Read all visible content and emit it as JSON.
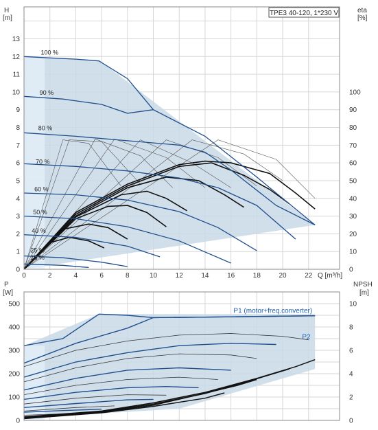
{
  "chart_data": [
    {
      "type": "line",
      "panel": "head",
      "model_label": "TPE3 40-120, 1*230 V",
      "ylabel_left": "H",
      "yunit_left": "[m]",
      "ylabel_right": "eta",
      "yunit_right": "[%]",
      "xlabel": "Q [m³/h]",
      "xlim": [
        0,
        24.4
      ],
      "ylim": [
        0,
        14.8
      ],
      "xticks": [
        0,
        2,
        4,
        6,
        8,
        10,
        12,
        14,
        16,
        18,
        20,
        22
      ],
      "yticks_left": [
        0,
        1,
        2,
        3,
        4,
        5,
        6,
        7,
        8,
        9,
        10,
        11,
        12,
        13
      ],
      "yticks_right": [
        0,
        10,
        20,
        30,
        40,
        50,
        60,
        70,
        80,
        90,
        100
      ],
      "right_scale_factor": 10,
      "grid": true,
      "envelope": [
        [
          0,
          12.0
        ],
        [
          5.8,
          11.8
        ],
        [
          22.5,
          2.5
        ],
        [
          0,
          0
        ]
      ],
      "curves": [
        {
          "label": "100 %",
          "label_x": 1.3,
          "label_y": 12.1,
          "points": [
            [
              0,
              12.0
            ],
            [
              2,
              11.92
            ],
            [
              4,
              11.85
            ],
            [
              5.8,
              11.75
            ],
            [
              8,
              10.75
            ],
            [
              10,
              9.0
            ],
            [
              14,
              7.5
            ],
            [
              18,
              5.2
            ],
            [
              22.5,
              2.5
            ]
          ]
        },
        {
          "label": "90 %",
          "label_x": 1.2,
          "label_y": 9.85,
          "points": [
            [
              0,
              9.75
            ],
            [
              3,
              9.6
            ],
            [
              6,
              9.3
            ],
            [
              8,
              8.8
            ],
            [
              10,
              9.0
            ]
          ]
        },
        {
          "label": "80 %",
          "label_x": 1.1,
          "label_y": 7.85,
          "points": [
            [
              0,
              7.7
            ],
            [
              4,
              7.5
            ],
            [
              8,
              7.25
            ],
            [
              12,
              7.0
            ],
            [
              14,
              6.6
            ],
            [
              16,
              5.6
            ],
            [
              19.5,
              3.6
            ],
            [
              22.5,
              2.5
            ]
          ]
        },
        {
          "label": "70 %",
          "label_x": 0.9,
          "label_y": 5.95,
          "points": [
            [
              0,
              5.95
            ],
            [
              4,
              5.8
            ],
            [
              8,
              5.55
            ],
            [
              12,
              5.15
            ],
            [
              15,
              4.6
            ],
            [
              18,
              3.6
            ],
            [
              21,
              1.7
            ]
          ]
        },
        {
          "label": "60 %",
          "label_x": 0.8,
          "label_y": 4.4,
          "points": [
            [
              0,
              4.3
            ],
            [
              4,
              4.2
            ],
            [
              8,
              3.9
            ],
            [
              12,
              3.25
            ],
            [
              15,
              2.35
            ],
            [
              18,
              1.05
            ]
          ]
        },
        {
          "label": "50 %",
          "label_x": 0.7,
          "label_y": 3.1,
          "points": [
            [
              0,
              3.0
            ],
            [
              4,
              2.85
            ],
            [
              8,
              2.4
            ],
            [
              12,
              1.6
            ],
            [
              16,
              0.35
            ]
          ]
        },
        {
          "label": "40 %",
          "label_x": 0.6,
          "label_y": 2.05,
          "points": [
            [
              0,
              1.95
            ],
            [
              4,
              1.8
            ],
            [
              8,
              1.3
            ],
            [
              10.5,
              0.7
            ]
          ]
        },
        {
          "label": "25 %",
          "label_x": 0.5,
          "label_y": 0.95,
          "points": [
            [
              0,
              0.75
            ],
            [
              3,
              0.65
            ],
            [
              6,
              0.4
            ],
            [
              8,
              0.15
            ]
          ]
        },
        {
          "label": "15 %",
          "label_x": 0.5,
          "label_y": 0.55,
          "points": [
            [
              0,
              0.3
            ],
            [
              3,
              0.22
            ],
            [
              5,
              0.1
            ]
          ]
        }
      ],
      "eta_bold": [
        [
          [
            0,
            0
          ],
          [
            4,
            3.2
          ],
          [
            8,
            4.8
          ],
          [
            12,
            5.9
          ],
          [
            14,
            6.1
          ],
          [
            16,
            6.0
          ],
          [
            19,
            5.4
          ],
          [
            21,
            4.3
          ],
          [
            22.5,
            3.4
          ]
        ],
        [
          [
            0,
            0
          ],
          [
            4,
            3.1
          ],
          [
            8,
            4.7
          ],
          [
            12,
            5.8
          ],
          [
            14.5,
            6.0
          ],
          [
            17,
            5.3
          ],
          [
            19,
            4.5
          ],
          [
            20.5,
            3.7
          ]
        ],
        [
          [
            0,
            0
          ],
          [
            4,
            3.0
          ],
          [
            8,
            4.6
          ],
          [
            11,
            5.2
          ],
          [
            13.5,
            5.0
          ],
          [
            15.5,
            4.2
          ],
          [
            17,
            3.5
          ]
        ],
        [
          [
            0,
            0
          ],
          [
            4,
            2.95
          ],
          [
            7.5,
            4.2
          ],
          [
            9.5,
            4.4
          ],
          [
            11,
            4.0
          ],
          [
            12.6,
            3.3
          ]
        ],
        [
          [
            0,
            0
          ],
          [
            4,
            2.85
          ],
          [
            6.5,
            3.55
          ],
          [
            8,
            3.6
          ],
          [
            9.5,
            3.2
          ],
          [
            11,
            2.4
          ]
        ],
        [
          [
            0,
            0
          ],
          [
            3,
            2.25
          ],
          [
            5,
            2.55
          ],
          [
            6.5,
            2.35
          ],
          [
            8,
            1.7
          ]
        ],
        [
          [
            0,
            0
          ],
          [
            2,
            1.5
          ],
          [
            3.5,
            1.8
          ],
          [
            5,
            1.6
          ],
          [
            6.2,
            1.2
          ]
        ]
      ],
      "eta_thin": [
        [
          [
            0,
            0
          ],
          [
            3,
            7.3
          ],
          [
            5,
            7.1
          ],
          [
            7.5,
            4.7
          ]
        ],
        [
          [
            0,
            0
          ],
          [
            3.5,
            7.3
          ],
          [
            6,
            7.2
          ],
          [
            9,
            4.8
          ]
        ],
        [
          [
            0,
            0
          ],
          [
            5.5,
            7.35
          ],
          [
            9,
            6.4
          ],
          [
            11.5,
            4.6
          ]
        ],
        [
          [
            0,
            0
          ],
          [
            7,
            7.35
          ],
          [
            11,
            6.3
          ],
          [
            14,
            4.6
          ]
        ],
        [
          [
            0,
            0
          ],
          [
            9,
            7.3
          ],
          [
            13,
            6.0
          ],
          [
            16,
            4.6
          ]
        ],
        [
          [
            0,
            0
          ],
          [
            11,
            7.3
          ],
          [
            15,
            6.3
          ],
          [
            18,
            4.7
          ]
        ],
        [
          [
            0,
            0
          ],
          [
            13,
            7.3
          ],
          [
            17,
            6.5
          ],
          [
            20,
            5.0
          ]
        ],
        [
          [
            0,
            0
          ],
          [
            15,
            7.3
          ],
          [
            19.5,
            6.2
          ],
          [
            22.5,
            4.0
          ]
        ]
      ]
    },
    {
      "type": "line",
      "panel": "power",
      "ylabel_left": "P",
      "yunit_left": "[W]",
      "ylabel_right": "NPSH",
      "yunit_right": "[m]",
      "xlim": [
        0,
        24.4
      ],
      "ylim": [
        0,
        550
      ],
      "yticks_left": [
        0,
        100,
        200,
        300,
        400,
        500
      ],
      "yticks_right": [
        0,
        2,
        4,
        6,
        8,
        10
      ],
      "right_scale_factor": 50,
      "grid": true,
      "envelope": [
        [
          0,
          320
        ],
        [
          5.8,
          455
        ],
        [
          22.5,
          455
        ],
        [
          22.5,
          220
        ],
        [
          12,
          50
        ],
        [
          0,
          10
        ]
      ],
      "series_labels": [
        {
          "name": "P1 (motor+freq.converter)",
          "x": 16.2,
          "y": 460
        },
        {
          "name": "P2",
          "x": 21.5,
          "y": 348
        }
      ],
      "p1_curves": [
        [
          [
            0,
            320
          ],
          [
            3,
            350
          ],
          [
            5.8,
            455
          ],
          [
            8,
            450
          ],
          [
            10,
            440
          ],
          [
            14,
            442
          ],
          [
            18,
            445
          ],
          [
            22.5,
            448
          ]
        ],
        [
          [
            0,
            245
          ],
          [
            4,
            330
          ],
          [
            8,
            395
          ],
          [
            10,
            440
          ],
          [
            14,
            442
          ],
          [
            22.5,
            448
          ]
        ],
        [
          [
            0,
            185
          ],
          [
            4,
            250
          ],
          [
            8,
            290
          ],
          [
            12,
            320
          ],
          [
            16,
            330
          ],
          [
            19.5,
            325
          ]
        ],
        [
          [
            0,
            130
          ],
          [
            4,
            180
          ],
          [
            8,
            215
          ],
          [
            12,
            225
          ],
          [
            16,
            215
          ]
        ],
        [
          [
            0,
            90
          ],
          [
            4,
            120
          ],
          [
            8,
            140
          ],
          [
            11,
            145
          ],
          [
            13.5,
            140
          ]
        ],
        [
          [
            0,
            55
          ],
          [
            4,
            72
          ],
          [
            8,
            88
          ],
          [
            10,
            90
          ]
        ],
        [
          [
            0,
            35
          ],
          [
            3,
            42
          ],
          [
            6,
            48
          ]
        ]
      ],
      "p2_curves": [
        [
          [
            0,
            230
          ],
          [
            4,
            300
          ],
          [
            8,
            340
          ],
          [
            12,
            365
          ],
          [
            16,
            372
          ],
          [
            20,
            360
          ],
          [
            22,
            345
          ]
        ],
        [
          [
            0,
            165
          ],
          [
            4,
            225
          ],
          [
            8,
            265
          ],
          [
            12,
            285
          ],
          [
            16,
            280
          ],
          [
            18,
            265
          ]
        ],
        [
          [
            0,
            110
          ],
          [
            4,
            150
          ],
          [
            8,
            175
          ],
          [
            12,
            185
          ],
          [
            15,
            175
          ]
        ],
        [
          [
            0,
            70
          ],
          [
            4,
            95
          ],
          [
            8,
            110
          ],
          [
            11,
            108
          ]
        ],
        [
          [
            0,
            40
          ],
          [
            4,
            55
          ],
          [
            7,
            62
          ]
        ],
        [
          [
            0,
            22
          ],
          [
            3,
            28
          ],
          [
            5,
            30
          ]
        ]
      ],
      "npsh_curves": [
        [
          [
            0,
            0.3
          ],
          [
            6,
            0.8
          ],
          [
            10,
            1.5
          ],
          [
            14,
            2.4
          ],
          [
            18,
            3.6
          ],
          [
            21,
            4.6
          ],
          [
            22.5,
            5.2
          ]
        ],
        [
          [
            0,
            0.25
          ],
          [
            6,
            0.75
          ],
          [
            10,
            1.4
          ],
          [
            14,
            2.3
          ],
          [
            17.5,
            3.4
          ],
          [
            20.5,
            4.4
          ]
        ],
        [
          [
            0,
            0.2
          ],
          [
            6,
            0.7
          ],
          [
            10,
            1.3
          ],
          [
            13.5,
            2.2
          ],
          [
            16.5,
            3.0
          ],
          [
            18,
            3.5
          ]
        ],
        [
          [
            0,
            0.15
          ],
          [
            6,
            0.65
          ],
          [
            10,
            1.2
          ],
          [
            14,
            1.9
          ],
          [
            15.5,
            2.35
          ]
        ]
      ]
    }
  ]
}
